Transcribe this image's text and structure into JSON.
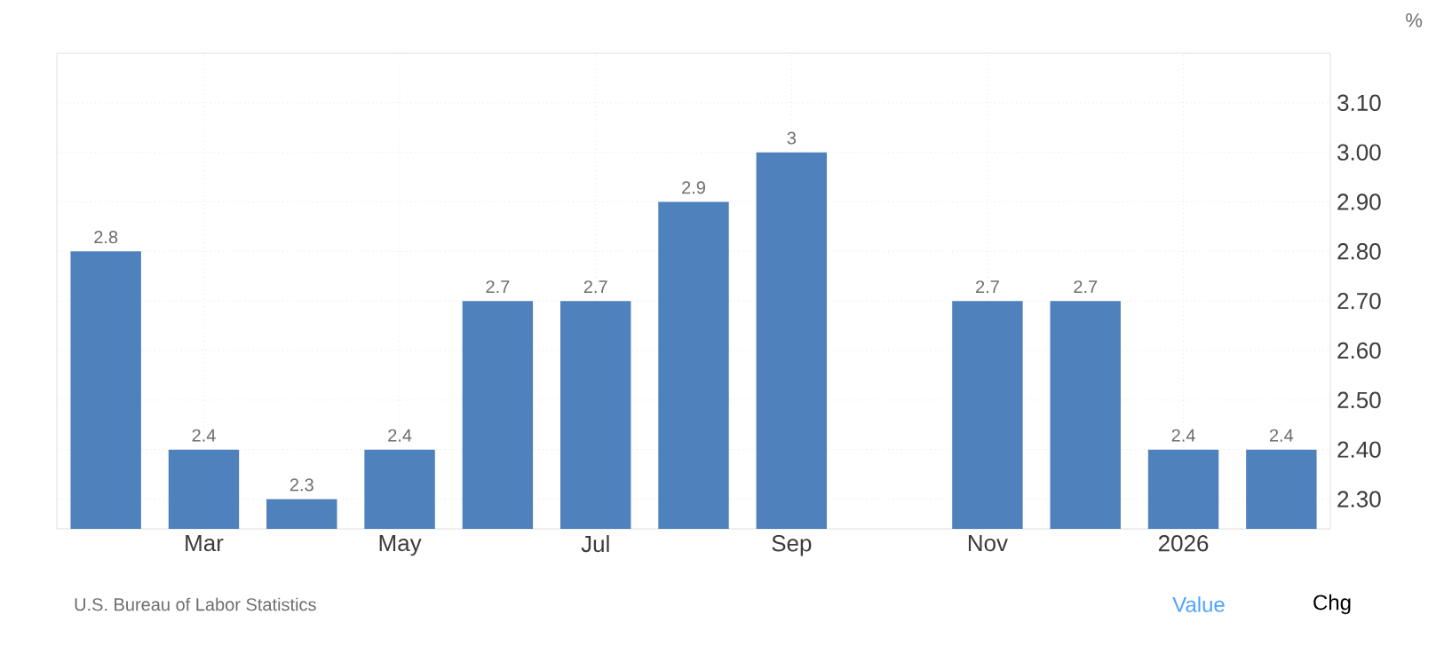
{
  "chart_data": {
    "type": "bar",
    "ylabel": "%",
    "categories": [
      null,
      "Mar",
      null,
      "May",
      null,
      "Jul",
      null,
      "Sep",
      null,
      "Nov",
      null,
      "2026",
      null
    ],
    "values": [
      2.8,
      2.4,
      2.3,
      2.4,
      2.7,
      2.7,
      2.9,
      3,
      null,
      2.7,
      2.7,
      2.4,
      2.4
    ],
    "color": "#4f81bd",
    "ylim": [
      2.24,
      3.2
    ],
    "yticks": [
      {
        "value": 2.3,
        "label": "2.30"
      },
      {
        "value": 2.4,
        "label": "2.40"
      },
      {
        "value": 2.5,
        "label": "2.50"
      },
      {
        "value": 2.6,
        "label": "2.60"
      },
      {
        "value": 2.7,
        "label": "2.70"
      },
      {
        "value": 2.8,
        "label": "2.80"
      },
      {
        "value": 2.9,
        "label": "2.90"
      },
      {
        "value": 3.0,
        "label": "3.00"
      },
      {
        "value": 3.1,
        "label": "3.10"
      }
    ],
    "grid": true,
    "data_labels": true,
    "annotations": [
      "U.S. Bureau of Labor Statistics",
      "Value",
      "Chg"
    ]
  }
}
